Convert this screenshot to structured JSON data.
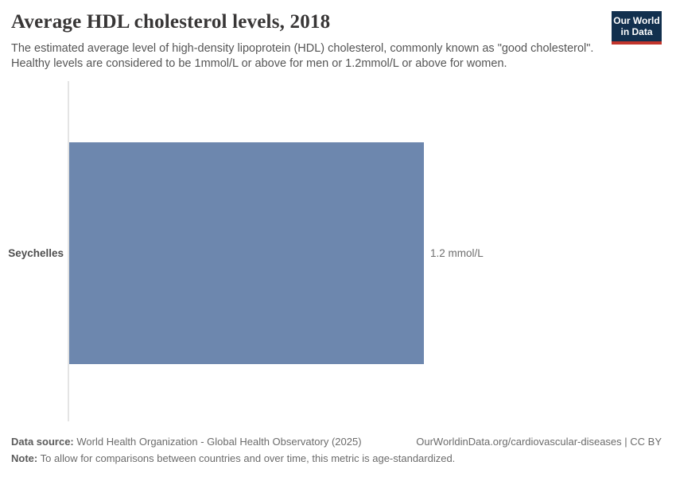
{
  "header": {
    "title": "Average HDL cholesterol levels, 2018",
    "subtitle": "The estimated average level of high-density lipoprotein (HDL) cholesterol, commonly known as \"good cholesterol\". Healthy levels are considered to be 1mmol/L or above for men or 1.2mmol/L or above for women.",
    "logo": {
      "line1": "Our World",
      "line2": "in Data",
      "bg_color": "#12304e",
      "stripe_color": "#c2352c",
      "text_color": "#ffffff"
    }
  },
  "chart_data": {
    "type": "bar",
    "orientation": "horizontal",
    "title": "Average HDL cholesterol levels, 2018",
    "year": "2018",
    "categories": [
      "Seychelles"
    ],
    "values": [
      1.2
    ],
    "unit": "mmol/L",
    "value_labels": [
      "1.2 mmol/L"
    ],
    "xlim": [
      0,
      1.2
    ],
    "bar_color": "#6d87ae",
    "axis_line_color": "#e4e4e4",
    "grid": false,
    "legend": false
  },
  "footer": {
    "data_source_label": "Data source:",
    "data_source_text": "World Health Organization - Global Health Observatory (2025)",
    "citation": "OurWorldinData.org/cardiovascular-diseases | CC BY",
    "note_label": "Note:",
    "note_text": "To allow for comparisons between countries and over time, this metric is age-standardized."
  }
}
